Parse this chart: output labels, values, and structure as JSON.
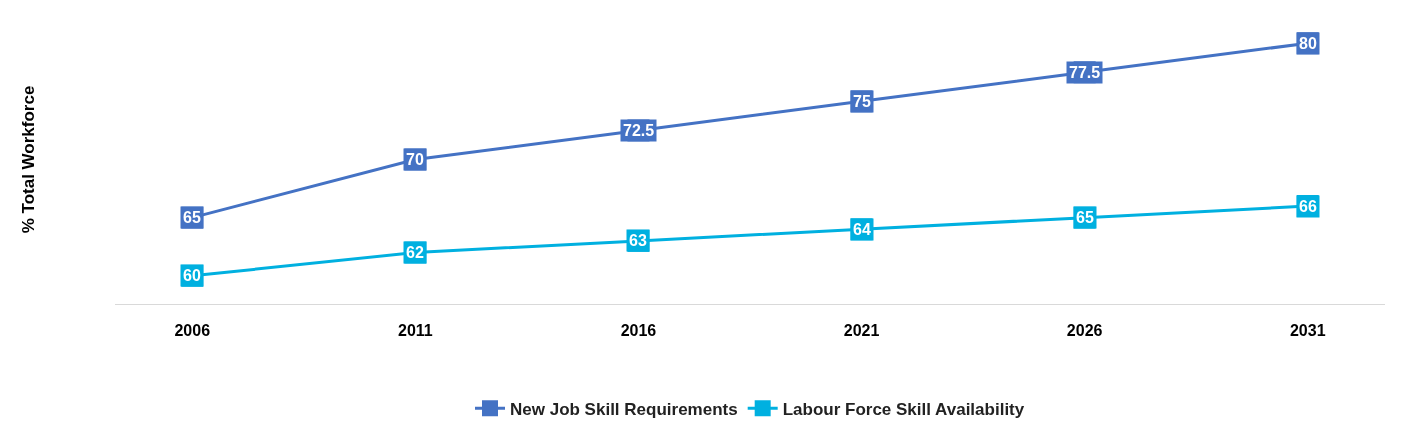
{
  "chart_data": {
    "type": "line",
    "ylabel": "% Total Workforce",
    "categories": [
      "2006",
      "2011",
      "2016",
      "2021",
      "2026",
      "2031"
    ],
    "series": [
      {
        "name": "New Job Skill Requirements",
        "color": "#4472c4",
        "values": [
          65,
          70,
          72.5,
          75,
          77.5,
          80
        ]
      },
      {
        "name": "Labour Force Skill Availability",
        "color": "#00b0e0",
        "values": [
          60,
          62,
          63,
          64,
          65,
          66
        ]
      }
    ],
    "tick_labels": "x",
    "marker": "square",
    "data_labels": true,
    "legend": "bottom",
    "line_style": "solid"
  }
}
